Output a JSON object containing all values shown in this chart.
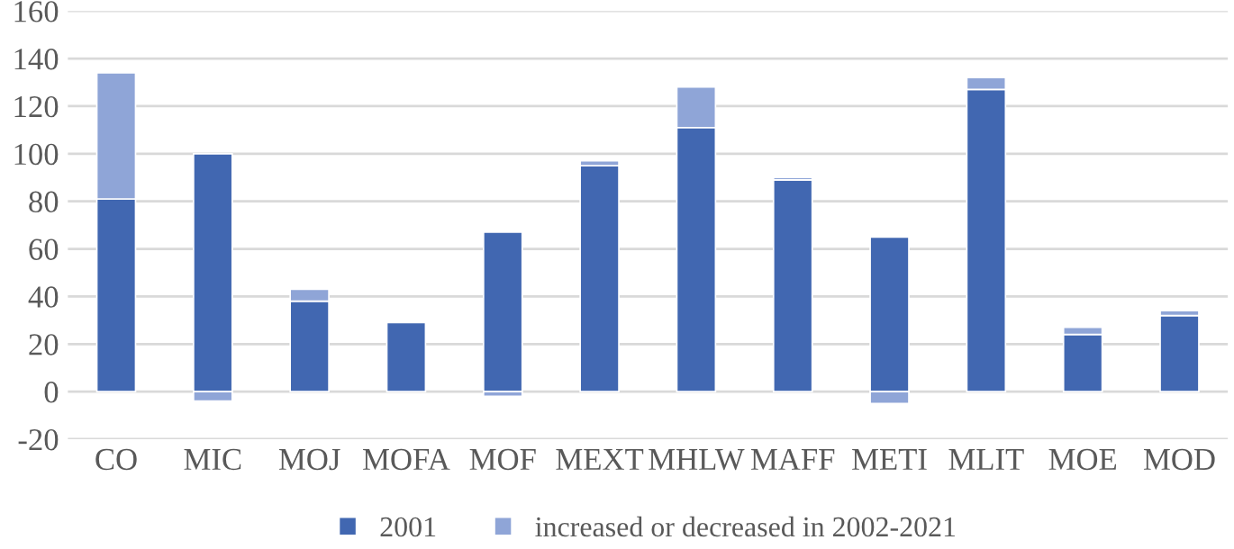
{
  "chart_data": {
    "type": "bar",
    "stacked": true,
    "categories": [
      "CO",
      "MIC",
      "MOJ",
      "MOFA",
      "MOF",
      "MEXT",
      "MHLW",
      "MAFF",
      "METI",
      "MLIT",
      "MOE",
      "MOD"
    ],
    "series": [
      {
        "name": "2001",
        "color": "#4167b1",
        "values": [
          81,
          100,
          38,
          29,
          67,
          95,
          111,
          89,
          65,
          127,
          24,
          32
        ]
      },
      {
        "name": "increased or decreased in 2002-2021",
        "color": "#8fa5d7",
        "values": [
          53,
          -4,
          5,
          null,
          -2,
          2,
          17,
          1,
          -5,
          5,
          3,
          2
        ]
      }
    ],
    "ylim": [
      -20,
      160
    ],
    "yticks": [
      -20,
      0,
      20,
      40,
      60,
      80,
      100,
      120,
      140,
      160
    ],
    "grid": "y",
    "legend": "bottom"
  }
}
